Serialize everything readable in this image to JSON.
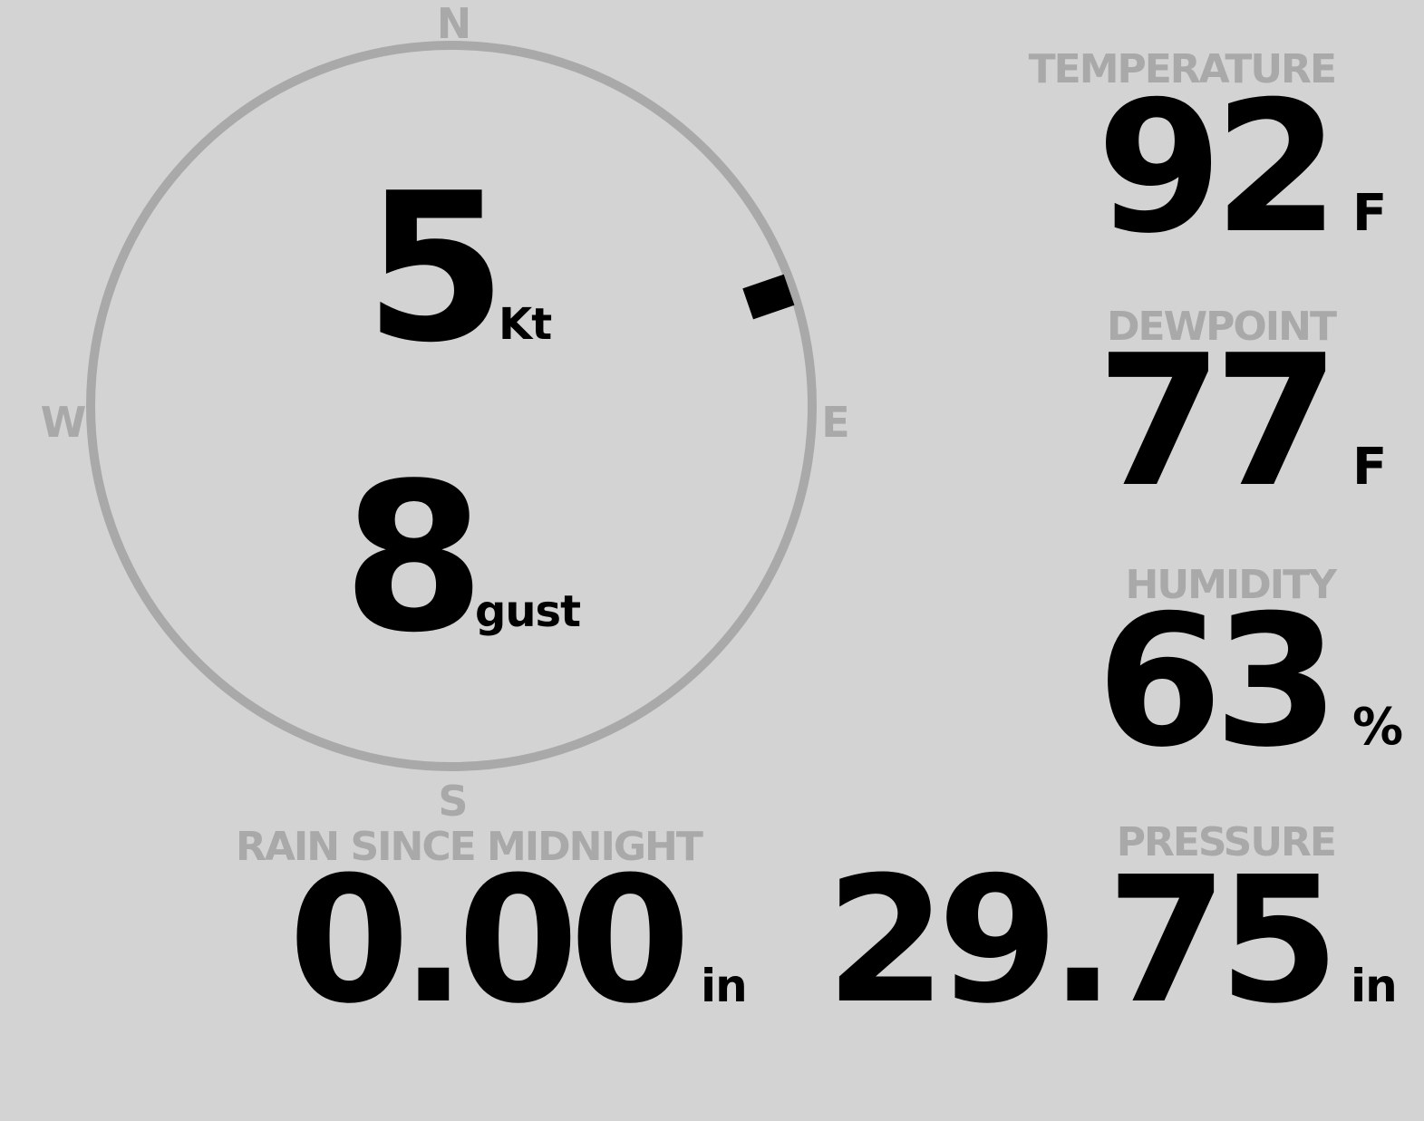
{
  "wind": {
    "speed": "5",
    "speed_unit": "Kt",
    "gust": "8",
    "gust_label": "gust",
    "direction_degrees": 71,
    "compass": {
      "n": "N",
      "e": "E",
      "s": "S",
      "w": "W"
    }
  },
  "temperature": {
    "label": "TEMPERATURE",
    "value": "92",
    "unit": "F"
  },
  "dewpoint": {
    "label": "DEWPOINT",
    "value": "77",
    "unit": "F"
  },
  "humidity": {
    "label": "HUMIDITY",
    "value": "63",
    "unit": "%"
  },
  "pressure": {
    "label": "PRESSURE",
    "value": "29.75",
    "unit": "in"
  },
  "rain": {
    "label": "RAIN SINCE MIDNIGHT",
    "value": "0.00",
    "unit": "in"
  },
  "colors": {
    "background": "#d3d3d3",
    "label": "#a9a9a9",
    "value": "#000000"
  }
}
